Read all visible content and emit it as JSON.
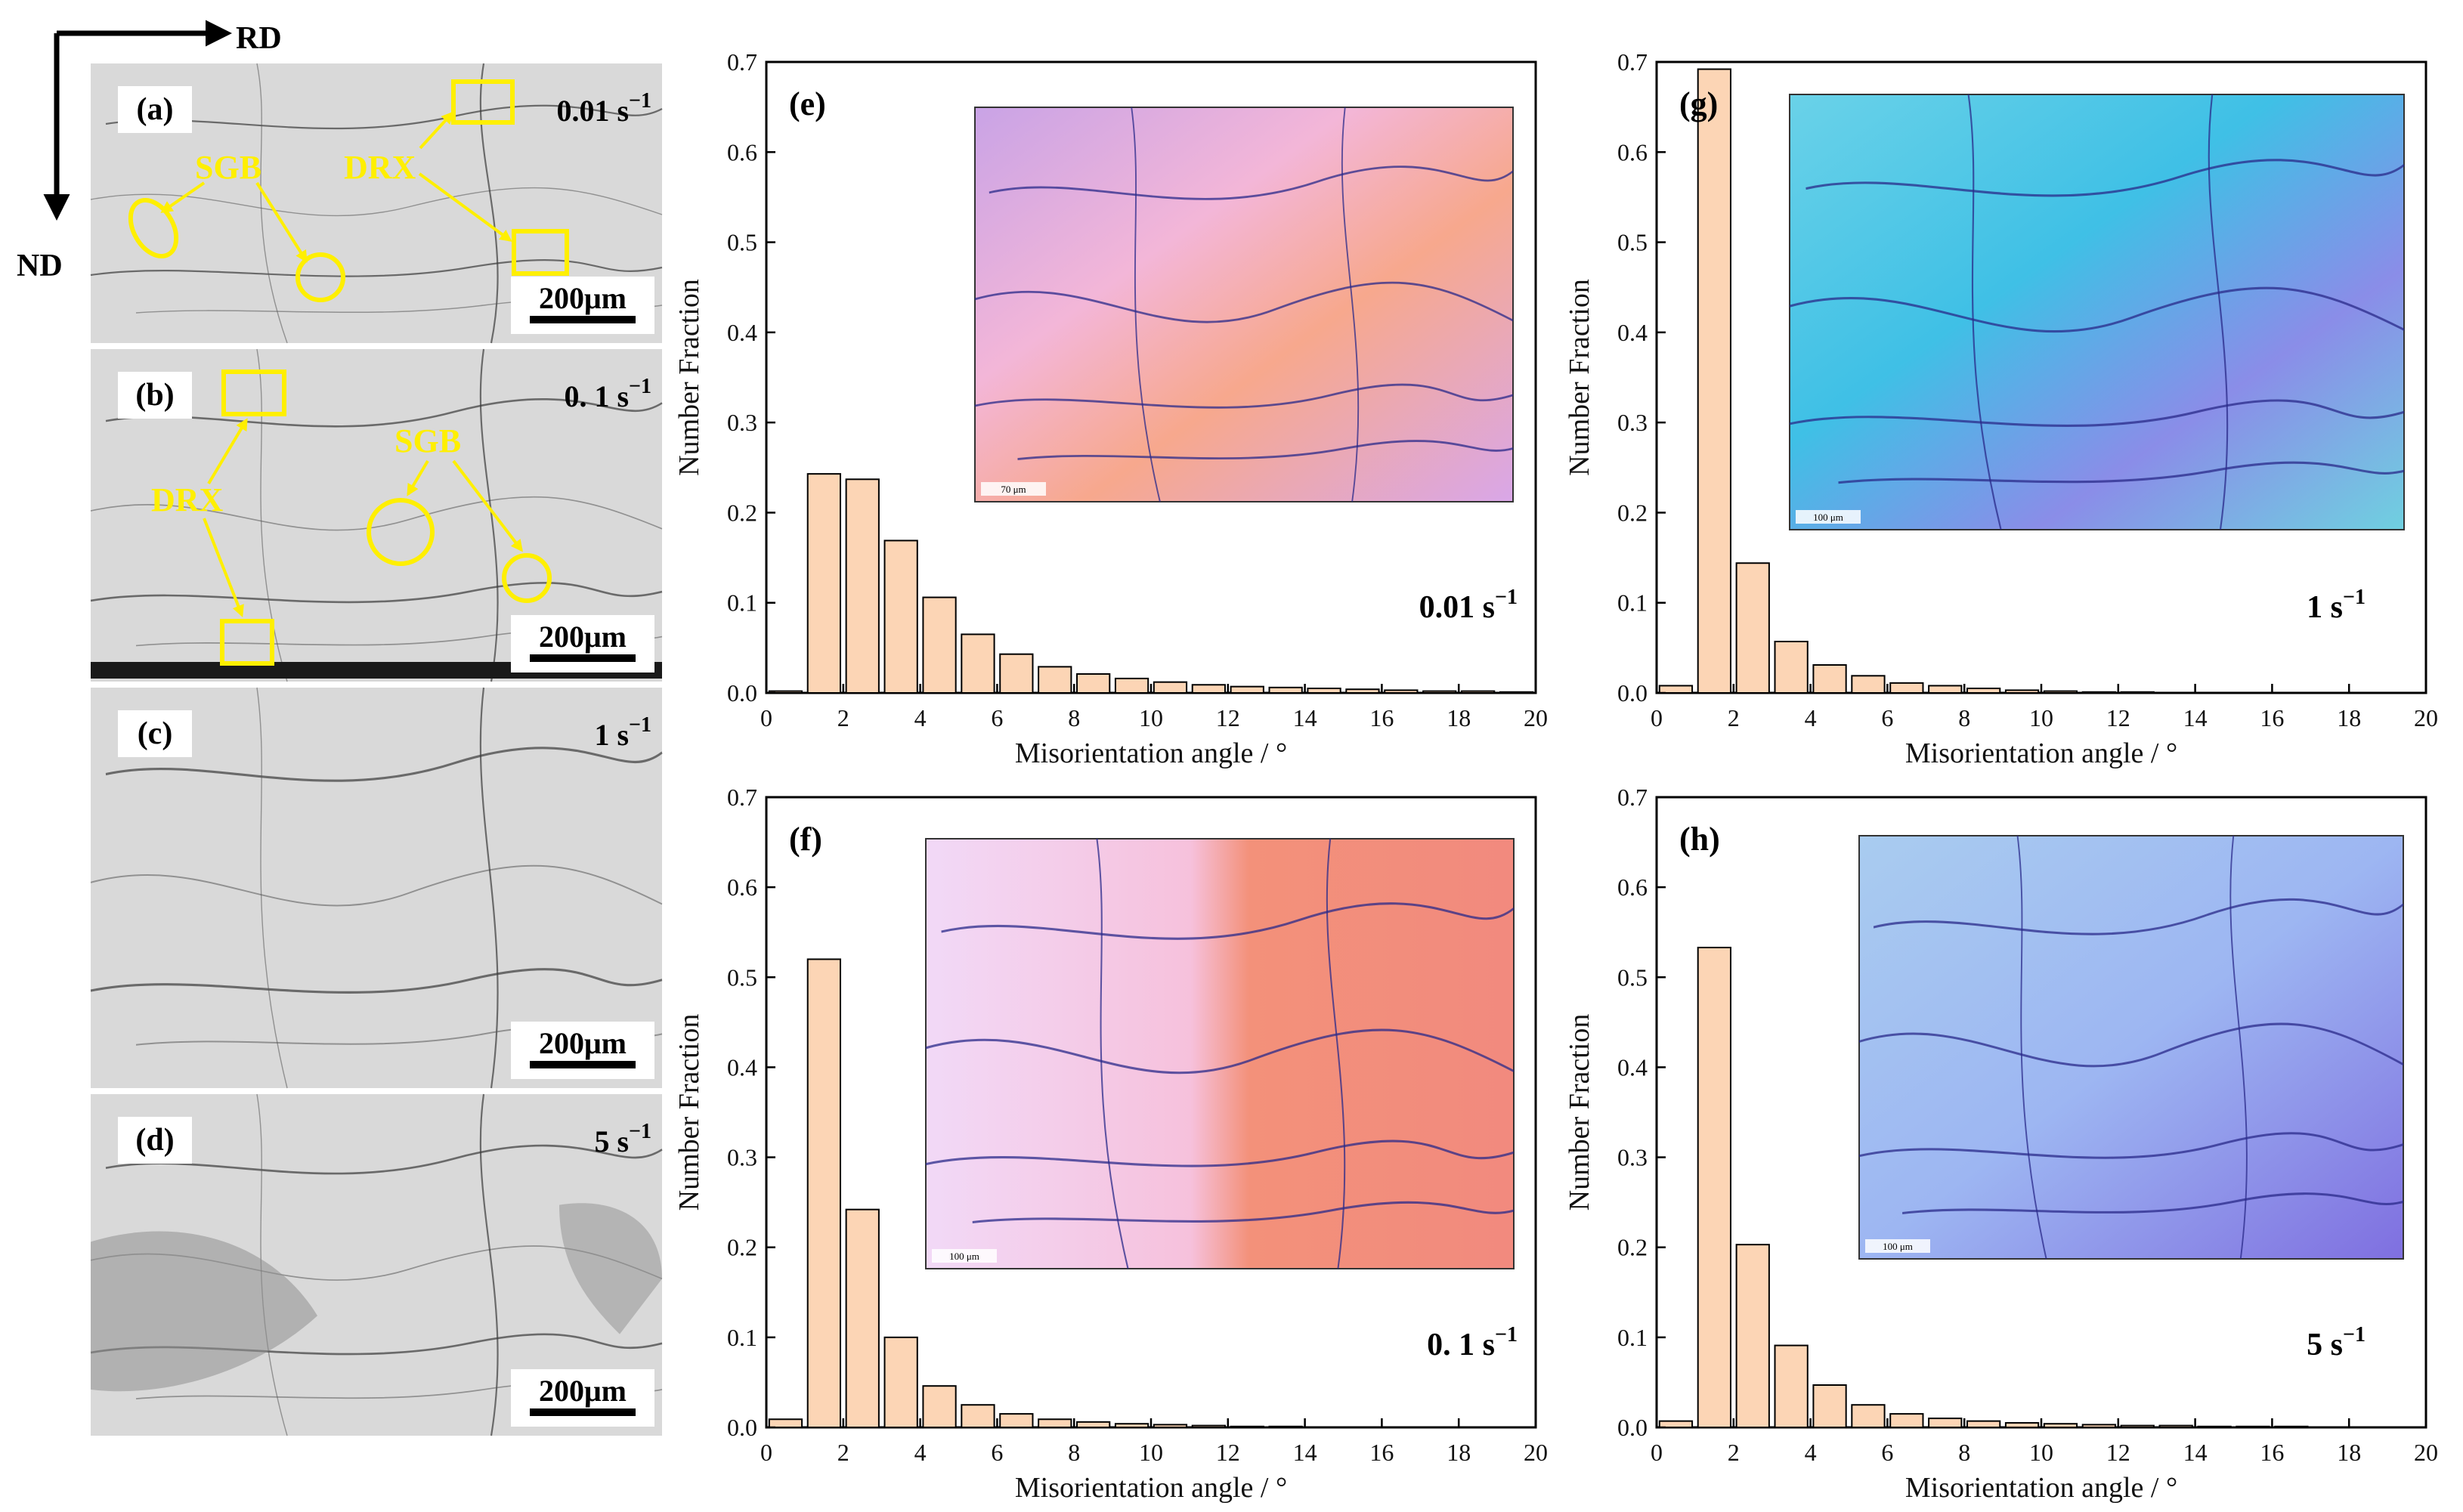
{
  "orientation": {
    "rd_label": "RD",
    "nd_label": "ND"
  },
  "micrographs": [
    {
      "label": "(a)",
      "rate": "0.01 s",
      "rate_sup": "−1",
      "scale": "200μm",
      "annotations": [
        "SGB",
        "DRX"
      ]
    },
    {
      "label": "(b)",
      "rate": "0. 1 s",
      "rate_sup": "−1",
      "scale": "200μm",
      "annotations": [
        "SGB",
        "DRX"
      ]
    },
    {
      "label": "(c)",
      "rate": "1 s",
      "rate_sup": "−1",
      "scale": "200μm",
      "annotations": []
    },
    {
      "label": "(d)",
      "rate": "5 s",
      "rate_sup": "−1",
      "scale": "200μm",
      "annotations": []
    }
  ],
  "colors": {
    "bar_fill": "#fcd5b5",
    "annotation": "#ffef00"
  },
  "chart_data": [
    {
      "type": "bar",
      "panel": "(e)",
      "rate": "0.01 s",
      "rate_sup": "−1",
      "xlabel": "Misorientation angle / °",
      "ylabel": "Number Fraction",
      "xlim": [
        0,
        20
      ],
      "ylim": [
        0,
        0.7
      ],
      "xticks": [
        0,
        2,
        4,
        6,
        8,
        10,
        12,
        14,
        16,
        18,
        20
      ],
      "yticks": [
        0.0,
        0.1,
        0.2,
        0.3,
        0.4,
        0.5,
        0.6,
        0.7
      ],
      "x": [
        0,
        1,
        2,
        3,
        4,
        5,
        6,
        7,
        8,
        9,
        10,
        11,
        12,
        13,
        14,
        15,
        16,
        17,
        18,
        19
      ],
      "values": [
        0.002,
        0.243,
        0.237,
        0.169,
        0.106,
        0.065,
        0.043,
        0.029,
        0.021,
        0.016,
        0.012,
        0.009,
        0.007,
        0.006,
        0.005,
        0.004,
        0.003,
        0.002,
        0.002,
        0.001
      ],
      "scale_bar": "70 μm"
    },
    {
      "type": "bar",
      "panel": "(f)",
      "rate": "0. 1 s",
      "rate_sup": "−1",
      "xlabel": "Misorientation angle / °",
      "ylabel": "Number Fraction",
      "xlim": [
        0,
        20
      ],
      "ylim": [
        0,
        0.7
      ],
      "xticks": [
        0,
        2,
        4,
        6,
        8,
        10,
        12,
        14,
        16,
        18,
        20
      ],
      "yticks": [
        0.0,
        0.1,
        0.2,
        0.3,
        0.4,
        0.5,
        0.6,
        0.7
      ],
      "x": [
        0,
        1,
        2,
        3,
        4,
        5,
        6,
        7,
        8,
        9,
        10,
        11,
        12,
        13,
        14,
        15,
        16,
        17,
        18,
        19
      ],
      "values": [
        0.009,
        0.52,
        0.242,
        0.1,
        0.046,
        0.025,
        0.015,
        0.009,
        0.006,
        0.004,
        0.003,
        0.002,
        0.001,
        0.001,
        0.0,
        0.0,
        0.0,
        0.0,
        0.0,
        0.0
      ],
      "scale_bar": "100 μm"
    },
    {
      "type": "bar",
      "panel": "(g)",
      "rate": "1 s",
      "rate_sup": "−1",
      "xlabel": "Misorientation angle / °",
      "ylabel": "Number Fraction",
      "xlim": [
        0,
        20
      ],
      "ylim": [
        0,
        0.7
      ],
      "xticks": [
        0,
        2,
        4,
        6,
        8,
        10,
        12,
        14,
        16,
        18,
        20
      ],
      "yticks": [
        0.0,
        0.1,
        0.2,
        0.3,
        0.4,
        0.5,
        0.6,
        0.7
      ],
      "x": [
        0,
        1,
        2,
        3,
        4,
        5,
        6,
        7,
        8,
        9,
        10,
        11,
        12,
        13,
        14,
        15,
        16,
        17,
        18,
        19
      ],
      "values": [
        0.008,
        0.692,
        0.144,
        0.057,
        0.031,
        0.019,
        0.011,
        0.008,
        0.005,
        0.003,
        0.002,
        0.001,
        0.001,
        0.0,
        0.0,
        0.0,
        0.0,
        0.0,
        0.0,
        0.0
      ],
      "scale_bar": "100 μm"
    },
    {
      "type": "bar",
      "panel": "(h)",
      "rate": "5 s",
      "rate_sup": "−1",
      "xlabel": "Misorientation angle / °",
      "ylabel": "Number Fraction",
      "xlim": [
        0,
        20
      ],
      "ylim": [
        0,
        0.7
      ],
      "xticks": [
        0,
        2,
        4,
        6,
        8,
        10,
        12,
        14,
        16,
        18,
        20
      ],
      "yticks": [
        0.0,
        0.1,
        0.2,
        0.3,
        0.4,
        0.5,
        0.6,
        0.7
      ],
      "x": [
        0,
        1,
        2,
        3,
        4,
        5,
        6,
        7,
        8,
        9,
        10,
        11,
        12,
        13,
        14,
        15,
        16,
        17,
        18,
        19
      ],
      "values": [
        0.007,
        0.533,
        0.203,
        0.091,
        0.047,
        0.025,
        0.015,
        0.01,
        0.007,
        0.005,
        0.004,
        0.003,
        0.002,
        0.002,
        0.001,
        0.001,
        0.001,
        0.0,
        0.0,
        0.0
      ],
      "scale_bar": "100 μm"
    }
  ]
}
